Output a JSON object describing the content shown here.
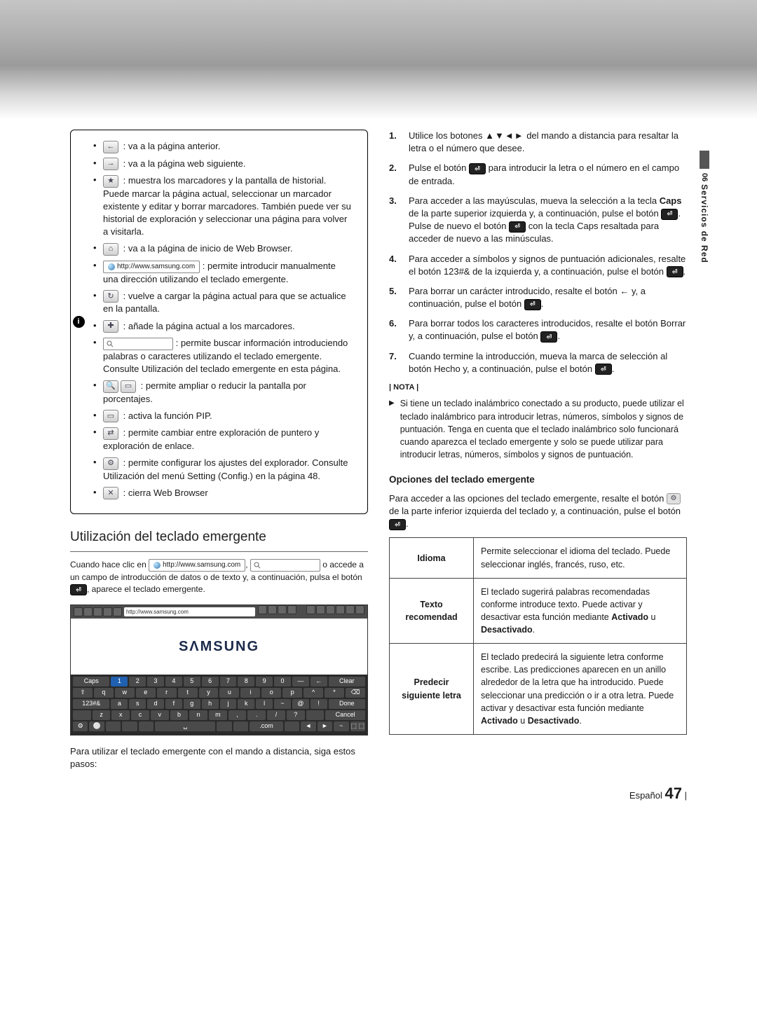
{
  "sidebar": {
    "chapter_num": "06",
    "chapter_title": "Servicios de Red"
  },
  "left": {
    "panel_items": [
      {
        "icon": "←",
        "name": "back-icon",
        "text": " : va a la página anterior."
      },
      {
        "icon": "→",
        "name": "forward-icon",
        "text": " : va a la página web siguiente."
      },
      {
        "icon": "★",
        "name": "bookmarks-icon",
        "text": " : muestra los marcadores y la pantalla de historial. Puede marcar la página actual, seleccionar un marcador existente y editar y borrar marcadores. También puede ver su historial de exploración y seleccionar una página para volver a visitarla."
      },
      {
        "icon": "⌂",
        "name": "home-icon",
        "text": " : va a la página de inicio de Web Browser."
      },
      {
        "type": "url",
        "url": "http://www.samsung.com",
        "text": " : permite introducir manualmente una dirección utilizando el teclado emergente."
      },
      {
        "icon": "↻",
        "name": "reload-icon",
        "text": " : vuelve a cargar la página actual para que se actualice en la pantalla."
      },
      {
        "icon": "✚",
        "name": "add-bookmark-icon",
        "text": " : añade la página actual a los marcadores."
      },
      {
        "type": "search",
        "text": " : permite buscar información introduciendo palabras o caracteres utilizando el teclado emergente. Consulte Utilización del teclado emergente en esta página."
      },
      {
        "type": "zoom",
        "text": " : permite ampliar o reducir la pantalla por porcentajes."
      },
      {
        "icon": "▭",
        "name": "pip-icon",
        "text": " : activa la función PIP."
      },
      {
        "icon": "⇄",
        "name": "pointer-icon",
        "text": " : permite cambiar entre exploración de puntero y exploración de enlace."
      },
      {
        "icon": "⚙",
        "name": "settings-icon",
        "text": " : permite configurar los ajustes del explorador. Consulte Utilización del menú Setting (Config.) en la página 48."
      },
      {
        "icon": "✕",
        "name": "close-icon",
        "text": " : cierra Web Browser"
      }
    ],
    "heading": "Utilización del teclado emergente",
    "intro_pre": "Cuando hace clic en ",
    "intro_url": "http://www.samsung.com",
    "intro_mid": ", ",
    "intro_post": " o accede a un campo de introducción de datos o de texto y, a continuación, pulsa el botón ",
    "intro_end": ", aparece el teclado emergente.",
    "kb_logo": "SΛMSUNG",
    "kb_addr": "http://www.samsung.com",
    "kb_rows": [
      [
        "Caps",
        "1",
        "2",
        "3",
        "4",
        "5",
        "6",
        "7",
        "8",
        "9",
        "0",
        "—",
        "←",
        "Clear"
      ],
      [
        "⇧",
        "q",
        "w",
        "e",
        "r",
        "t",
        "y",
        "u",
        "i",
        "o",
        "p",
        "^",
        "*",
        "⌫"
      ],
      [
        "123#&",
        "a",
        "s",
        "d",
        "f",
        "g",
        "h",
        "j",
        "k",
        "l",
        "~",
        "@",
        "!",
        "Done"
      ],
      [
        "",
        "z",
        "x",
        "c",
        "v",
        "b",
        "n",
        "m",
        ",",
        ".",
        "/",
        "?",
        "",
        "Cancel"
      ],
      [
        "⚙",
        "⚪",
        "",
        "",
        "",
        "␣",
        "",
        "",
        ".com",
        "",
        "◄",
        "►",
        "~",
        "⬚ ⬚"
      ]
    ],
    "para_after": "Para utilizar el teclado emergente con el mando a distancia, siga estos pasos:"
  },
  "right": {
    "steps": [
      {
        "n": "1.",
        "pre": "Utilice los botones ",
        "arrows": "▲▼◄►",
        "post": " del mando a distancia para resaltar la letra o el número que desee."
      },
      {
        "n": "2.",
        "pre": "Pulse el botón ",
        "btn": true,
        "post": " para introducir la letra o el número en el campo de entrada."
      },
      {
        "n": "3.",
        "pre": "Para acceder a las mayúsculas, mueva la selección a la tecla ",
        "bold1": "Caps",
        "mid1": " de la parte superior izquierda y, a continuación, pulse el botón ",
        "btn": true,
        "mid2": ". Pulse de nuevo el botón ",
        "btn2": true,
        "post": " con la tecla Caps resaltada para acceder de nuevo a las minúsculas."
      },
      {
        "n": "4.",
        "pre": "Para acceder a símbolos y signos de puntuación adicionales, resalte el botón 123#& de la izquierda y, a continuación, pulse el botón ",
        "btn": true,
        "post": "."
      },
      {
        "n": "5.",
        "pre": "Para borrar un carácter introducido, resalte el botón ← y, a continuación, pulse el botón ",
        "btn": true,
        "post": "."
      },
      {
        "n": "6.",
        "pre": "Para borrar todos los caracteres introducidos, resalte el botón Borrar y, a continuación, pulse el botón ",
        "btn": true,
        "post": "."
      },
      {
        "n": "7.",
        "pre": "Cuando termine la introducción, mueva la marca de selección al botón Hecho y, a continuación, pulse el botón ",
        "btn": true,
        "post": "."
      }
    ],
    "nota_label": "| NOTA |",
    "nota_text": "Si tiene un teclado inalámbrico conectado a su producto, puede utilizar el teclado inalámbrico para introducir letras, números, símbolos y signos de puntuación. Tenga en cuenta que el teclado inalámbrico solo funcionará cuando aparezca el teclado emergente y solo se puede utilizar para introducir letras, números, símbolos y signos de puntuación.",
    "sub_heading": "Opciones del teclado emergente",
    "sub_intro_pre": "Para acceder a las opciones del teclado emergente, resalte el botón ",
    "sub_intro_mid": " de la parte inferior izquierda del teclado y, a continuación, pulse el botón ",
    "sub_intro_end": ".",
    "table": [
      {
        "label": "Idioma",
        "desc": "Permite seleccionar el idioma del teclado. Puede seleccionar inglés, francés, ruso, etc."
      },
      {
        "label": "Texto recomendad",
        "desc_pre": "El teclado sugerirá palabras recomendadas conforme introduce texto. Puede activar y desactivar esta función mediante ",
        "b1": "Activado",
        "mid": " u ",
        "b2": "Desactivado",
        "end": "."
      },
      {
        "label": "Predecir siguiente letra",
        "desc_pre": "El teclado predecirá la siguiente letra conforme escribe. Las predicciones aparecen en un anillo alrededor de la letra que ha introducido. Puede seleccionar una predicción o ir a otra letra. Puede activar y desactivar esta función mediante ",
        "b1": "Activado",
        "mid": " u ",
        "b2": "Desactivado",
        "end": "."
      }
    ]
  },
  "footer": {
    "lang": "Español",
    "page": "47"
  }
}
